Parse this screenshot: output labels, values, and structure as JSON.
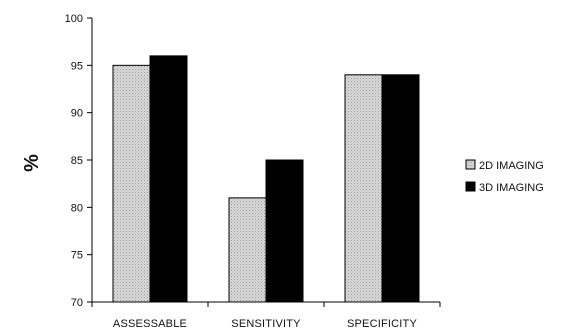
{
  "chart_data": {
    "type": "bar",
    "title": "",
    "xlabel": "",
    "ylabel": "%",
    "ylim": [
      70,
      100
    ],
    "yticks": [
      70,
      75,
      80,
      85,
      90,
      95,
      100
    ],
    "categories": [
      "ASSESSABLE",
      "SENSITIVITY",
      "SPECIFICITY"
    ],
    "series": [
      {
        "name": "2D IMAGING",
        "values": [
          95,
          81,
          94
        ],
        "color": "#cfcfcf",
        "pattern": "dotted-gray"
      },
      {
        "name": "3D IMAGING",
        "values": [
          96,
          85,
          94
        ],
        "color": "#000000",
        "pattern": "solid"
      }
    ],
    "grid": false,
    "legend_position": "right"
  }
}
